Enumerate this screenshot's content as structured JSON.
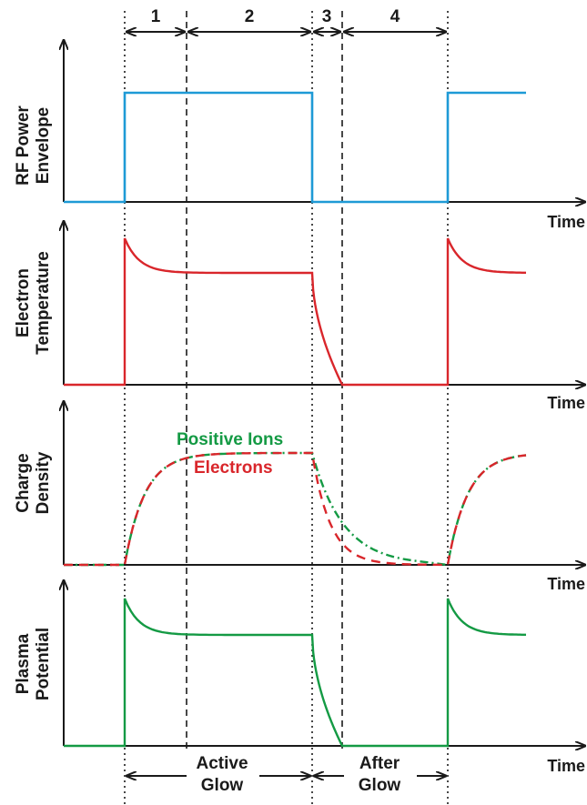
{
  "segments": [
    "1",
    "2",
    "3",
    "4"
  ],
  "panels": [
    {
      "ylabel_line1": "RF Power",
      "ylabel_line2": "Envelope",
      "xlabel": "Time"
    },
    {
      "ylabel_line1": "Electron",
      "ylabel_line2": "Temperature",
      "xlabel": "Time"
    },
    {
      "ylabel_line1": "Charge",
      "ylabel_line2": "Density",
      "xlabel": "Time"
    },
    {
      "ylabel_line1": "Plasma",
      "ylabel_line2": "Potential",
      "xlabel": "Time"
    }
  ],
  "legend": {
    "positive_ions": "Positive Ions",
    "electrons": "Electrons"
  },
  "phases": {
    "active_line1": "Active",
    "active_line2": "Glow",
    "after_line1": "After",
    "after_line2": "Glow"
  },
  "colors": {
    "rf_power": "#1e9ad6",
    "electron_temperature": "#d9262b",
    "positive_ions": "#149a44",
    "electrons": "#d9262b",
    "plasma_potential": "#149a44",
    "axis": "#1a1a1a"
  }
}
